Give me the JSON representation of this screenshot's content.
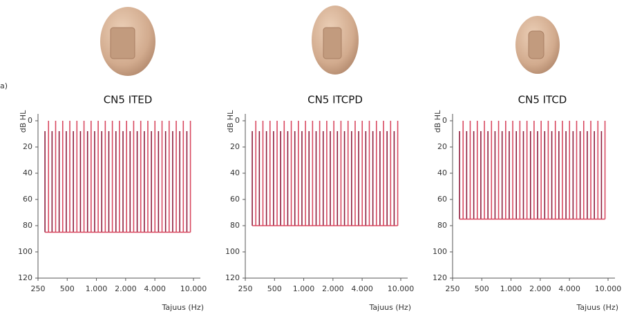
{
  "panel_label": "a)",
  "chart_data": [
    {
      "type": "range",
      "title": "CN5 ITED",
      "xlabel": "Tajuus (Hz)",
      "ylabel": "dB HL",
      "xscale": "log",
      "inverted_y": true,
      "xlim": [
        250,
        10000
      ],
      "xticks": [
        250,
        500,
        {
          "value": 1000,
          "label": "1.000"
        },
        {
          "value": 2000,
          "label": "2.000"
        },
        {
          "value": 4000,
          "label": "4.000"
        },
        {
          "value": 10000,
          "label": "10.000"
        }
      ],
      "ylim": [
        0,
        120
      ],
      "yticks": [
        0,
        20,
        40,
        60,
        80,
        100,
        120
      ],
      "x": [
        295,
        9300
      ],
      "y": [
        0,
        85
      ],
      "colors": [
        "#d8475f",
        "#8e1b3b"
      ]
    },
    {
      "type": "range",
      "title": "CN5 ITCPD",
      "xlabel": "Tajuus (Hz)",
      "ylabel": "dB HL",
      "xscale": "log",
      "inverted_y": true,
      "xlim": [
        250,
        10000
      ],
      "xticks": [
        250,
        500,
        {
          "value": 1000,
          "label": "1.000"
        },
        {
          "value": 2000,
          "label": "2.000"
        },
        {
          "value": 4000,
          "label": "4.000"
        },
        {
          "value": 10000,
          "label": "10.000"
        }
      ],
      "ylim": [
        0,
        120
      ],
      "yticks": [
        0,
        20,
        40,
        60,
        80,
        100,
        120
      ],
      "x": [
        295,
        9300
      ],
      "y": [
        0,
        80
      ],
      "colors": [
        "#d8475f",
        "#8e1b3b"
      ]
    },
    {
      "type": "range",
      "title": "CN5 ITCD",
      "xlabel": "Tajuus (Hz)",
      "ylabel": "dB HL",
      "xscale": "log",
      "inverted_y": true,
      "xlim": [
        250,
        10000
      ],
      "xticks": [
        250,
        500,
        {
          "value": 1000,
          "label": "1.000"
        },
        {
          "value": 2000,
          "label": "2.000"
        },
        {
          "value": 4000,
          "label": "4.000"
        },
        {
          "value": 10000,
          "label": "10.000"
        }
      ],
      "ylim": [
        0,
        120
      ],
      "yticks": [
        0,
        20,
        40,
        60,
        80,
        100,
        120
      ],
      "x": [
        295,
        9300
      ],
      "y": [
        0,
        75
      ],
      "colors": [
        "#d8475f",
        "#8e1b3b"
      ]
    }
  ]
}
